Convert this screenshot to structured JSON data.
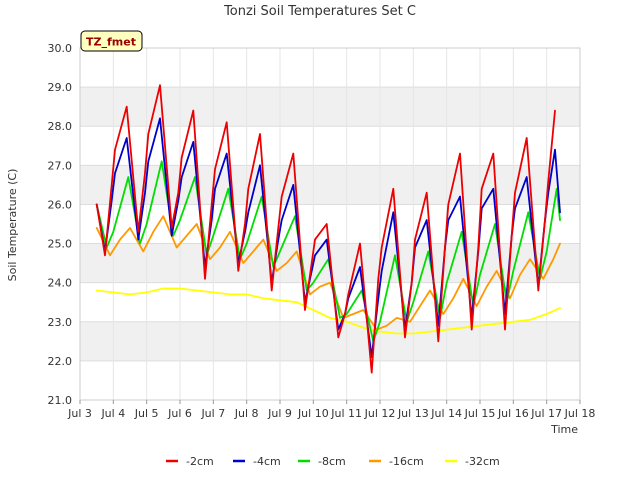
{
  "chart_data": {
    "type": "line",
    "title": "Tonzi Soil Temperatures Set C",
    "xlabel": "Time",
    "ylabel": "Soil Temperature (C)",
    "site_badge": "TZ_fmet",
    "xlim": [
      3,
      18
    ],
    "ylim": [
      21.0,
      30.0
    ],
    "x_ticks": [
      3,
      4,
      5,
      6,
      7,
      8,
      9,
      10,
      11,
      12,
      13,
      14,
      15,
      16,
      17,
      18
    ],
    "x_tick_labels": [
      "Jul 3",
      "Jul 4",
      "Jul 5",
      "Jul 6",
      "Jul 7",
      "Jul 8",
      "Jul 9",
      "Jul 10",
      "Jul 11",
      "Jul 12",
      "Jul 13",
      "Jul 14",
      "Jul 15",
      "Jul 16",
      "Jul 17",
      "Jul 18"
    ],
    "y_ticks": [
      21.0,
      22.0,
      23.0,
      24.0,
      25.0,
      26.0,
      27.0,
      28.0,
      29.0,
      30.0
    ],
    "y_tick_labels": [
      "21.0",
      "22.0",
      "23.0",
      "24.0",
      "25.0",
      "26.0",
      "27.0",
      "28.0",
      "29.0",
      "30.0"
    ],
    "grid": true,
    "legend_position": "bottom",
    "series": [
      {
        "name": "-2cm",
        "color": "#ee0000",
        "x": [
          3.5,
          3.75,
          3.95,
          4.05,
          4.4,
          4.75,
          4.95,
          5.05,
          5.4,
          5.75,
          5.95,
          6.05,
          6.4,
          6.75,
          6.95,
          7.05,
          7.4,
          7.75,
          7.95,
          8.05,
          8.4,
          8.75,
          8.95,
          9.05,
          9.4,
          9.75,
          9.95,
          10.05,
          10.4,
          10.75,
          10.95,
          11.05,
          11.4,
          11.75,
          11.95,
          12.05,
          12.4,
          12.75,
          12.95,
          13.05,
          13.4,
          13.75,
          13.95,
          14.05,
          14.4,
          14.75,
          14.95,
          15.05,
          15.4,
          15.75,
          15.95,
          16.05,
          16.4,
          16.75,
          16.95,
          17.05,
          17.25
        ],
        "y": [
          26.0,
          24.7,
          26.5,
          27.4,
          28.5,
          25.3,
          26.8,
          27.8,
          29.05,
          25.4,
          26.3,
          27.2,
          28.4,
          24.1,
          26.0,
          26.9,
          28.1,
          24.3,
          25.5,
          26.4,
          27.8,
          23.8,
          25.4,
          26.2,
          27.3,
          23.3,
          24.5,
          25.1,
          25.5,
          22.6,
          23.2,
          23.7,
          25.0,
          21.7,
          24.1,
          24.9,
          26.4,
          22.6,
          24.0,
          25.1,
          26.3,
          22.5,
          24.9,
          26.0,
          27.3,
          22.8,
          24.9,
          26.4,
          27.3,
          22.8,
          25.2,
          26.3,
          27.7,
          23.8,
          25.6,
          26.6,
          28.4
        ]
      },
      {
        "name": "-4cm",
        "color": "#0000cc",
        "x": [
          3.5,
          3.75,
          3.95,
          4.05,
          4.4,
          4.75,
          4.95,
          5.05,
          5.4,
          5.75,
          5.95,
          6.05,
          6.4,
          6.75,
          6.95,
          7.05,
          7.4,
          7.75,
          7.95,
          8.05,
          8.4,
          8.75,
          8.95,
          9.05,
          9.4,
          9.75,
          9.95,
          10.05,
          10.4,
          10.75,
          10.95,
          11.05,
          11.4,
          11.75,
          11.95,
          12.05,
          12.4,
          12.75,
          12.95,
          13.05,
          13.4,
          13.75,
          13.95,
          14.05,
          14.4,
          14.75,
          14.95,
          15.05,
          15.4,
          15.75,
          15.95,
          16.05,
          16.4,
          16.75,
          16.95,
          17.05,
          17.25,
          17.4
        ],
        "y": [
          26.0,
          24.8,
          26.1,
          26.8,
          27.7,
          25.1,
          26.3,
          27.1,
          28.2,
          25.2,
          26.1,
          26.7,
          27.6,
          24.4,
          25.6,
          26.4,
          27.3,
          24.5,
          25.3,
          25.8,
          27.0,
          24.0,
          25.1,
          25.6,
          26.5,
          23.5,
          24.3,
          24.7,
          25.1,
          22.8,
          23.2,
          23.6,
          24.4,
          22.1,
          23.6,
          24.3,
          25.8,
          22.8,
          24.0,
          24.9,
          25.6,
          22.9,
          24.9,
          25.6,
          26.2,
          23.1,
          24.8,
          25.9,
          26.4,
          23.2,
          25.2,
          25.9,
          26.7,
          23.9,
          25.6,
          26.3,
          27.4,
          25.8
        ]
      },
      {
        "name": "-8cm",
        "color": "#00dd00",
        "x": [
          3.5,
          3.8,
          4.0,
          4.45,
          4.8,
          5.0,
          5.45,
          5.8,
          6.0,
          6.45,
          6.8,
          7.0,
          7.45,
          7.8,
          8.0,
          8.45,
          8.8,
          9.0,
          9.45,
          9.8,
          10.0,
          10.45,
          10.8,
          11.0,
          11.45,
          11.8,
          12.0,
          12.45,
          12.8,
          13.0,
          13.45,
          13.8,
          14.0,
          14.45,
          14.8,
          15.0,
          15.45,
          15.8,
          16.0,
          16.45,
          16.8,
          17.0,
          17.3,
          17.4
        ],
        "y": [
          26.0,
          24.9,
          25.3,
          26.7,
          25.0,
          25.5,
          27.1,
          25.2,
          25.6,
          26.7,
          24.7,
          25.2,
          26.4,
          24.6,
          25.0,
          26.2,
          24.4,
          24.8,
          25.7,
          23.8,
          24.0,
          24.6,
          23.1,
          23.2,
          23.8,
          22.5,
          23.0,
          24.7,
          23.0,
          23.5,
          24.8,
          23.1,
          24.0,
          25.3,
          23.4,
          24.2,
          25.5,
          23.5,
          24.3,
          25.8,
          24.1,
          24.8,
          26.4,
          25.6
        ]
      },
      {
        "name": "-16cm",
        "color": "#ff9900",
        "x": [
          3.5,
          3.9,
          4.2,
          4.5,
          4.9,
          5.2,
          5.5,
          5.9,
          6.2,
          6.5,
          6.9,
          7.2,
          7.5,
          7.9,
          8.2,
          8.5,
          8.9,
          9.2,
          9.5,
          9.9,
          10.2,
          10.5,
          10.9,
          11.2,
          11.5,
          11.9,
          12.2,
          12.5,
          12.9,
          13.2,
          13.5,
          13.9,
          14.2,
          14.5,
          14.9,
          15.2,
          15.5,
          15.9,
          16.2,
          16.5,
          16.9,
          17.2,
          17.4
        ],
        "y": [
          25.4,
          24.7,
          25.1,
          25.4,
          24.8,
          25.3,
          25.7,
          24.9,
          25.2,
          25.5,
          24.6,
          24.9,
          25.3,
          24.5,
          24.8,
          25.1,
          24.3,
          24.5,
          24.8,
          23.7,
          23.9,
          24.0,
          23.1,
          23.2,
          23.3,
          22.8,
          22.9,
          23.1,
          23.0,
          23.4,
          23.8,
          23.2,
          23.6,
          24.1,
          23.4,
          23.9,
          24.3,
          23.6,
          24.2,
          24.6,
          24.1,
          24.6,
          25.0
        ]
      },
      {
        "name": "-32cm",
        "color": "#ffff00",
        "x": [
          3.5,
          4.0,
          4.5,
          5.0,
          5.5,
          6.0,
          6.5,
          7.0,
          7.5,
          8.0,
          8.5,
          9.0,
          9.5,
          10.0,
          10.5,
          11.0,
          11.5,
          12.0,
          12.5,
          13.0,
          13.5,
          14.0,
          14.5,
          15.0,
          15.5,
          16.0,
          16.5,
          17.0,
          17.4
        ],
        "y": [
          23.8,
          23.75,
          23.7,
          23.75,
          23.85,
          23.85,
          23.8,
          23.75,
          23.7,
          23.7,
          23.6,
          23.55,
          23.5,
          23.3,
          23.1,
          23.0,
          22.85,
          22.75,
          22.7,
          22.7,
          22.75,
          22.8,
          22.85,
          22.9,
          22.95,
          23.0,
          23.05,
          23.2,
          23.35
        ]
      }
    ]
  }
}
